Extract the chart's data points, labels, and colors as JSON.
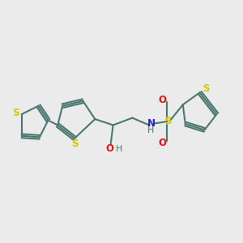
{
  "bg_color": "#ebebeb",
  "bond_color": "#4a7870",
  "sulfur_color": "#d4c800",
  "oxygen_color": "#ee1111",
  "nitrogen_color": "#2222cc",
  "hydrogen_color": "#4a7870",
  "line_width": 1.5,
  "figsize": [
    3.0,
    3.0
  ],
  "dpi": 100,
  "xlim": [
    0,
    10
  ],
  "ylim": [
    2,
    8
  ]
}
